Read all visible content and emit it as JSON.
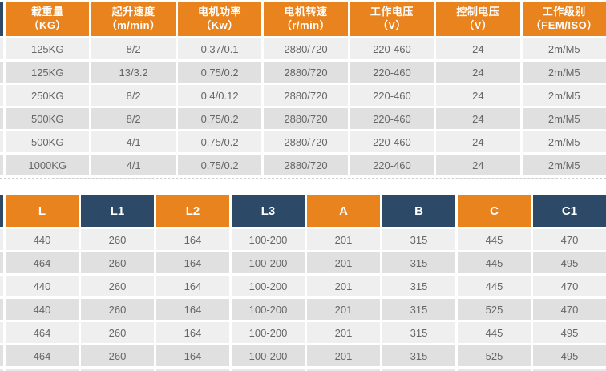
{
  "colors": {
    "header_orange": "#E9831E",
    "header_navy": "#2C4A68",
    "row_light": "#F0EFEF",
    "row_dark": "#E1E0E0",
    "cell_text": "#666666"
  },
  "spec_table": {
    "columns": [
      {
        "title": "载重量",
        "unit": "（KG）"
      },
      {
        "title": "起升速度",
        "unit": "（m/min）"
      },
      {
        "title": "电机功率",
        "unit": "（Kw）"
      },
      {
        "title": "电机转速",
        "unit": "（r/min）"
      },
      {
        "title": "工作电压",
        "unit": "（V）"
      },
      {
        "title": "控制电压",
        "unit": "（V）"
      },
      {
        "title": "工作级别",
        "unit": "（FEM/ISO）"
      }
    ],
    "rows": [
      [
        "125KG",
        "8/2",
        "0.37/0.1",
        "2880/720",
        "220-460",
        "24",
        "2m/M5"
      ],
      [
        "125KG",
        "13/3.2",
        "0.75/0.2",
        "2880/720",
        "220-460",
        "24",
        "2m/M5"
      ],
      [
        "250KG",
        "8/2",
        "0.4/0.12",
        "2880/720",
        "220-460",
        "24",
        "2m/M5"
      ],
      [
        "500KG",
        "8/2",
        "0.75/0.2",
        "2880/720",
        "220-460",
        "24",
        "2m/M5"
      ],
      [
        "500KG",
        "4/1",
        "0.75/0.2",
        "2880/720",
        "220-460",
        "24",
        "2m/M5"
      ],
      [
        "1000KG",
        "4/1",
        "0.75/0.2",
        "2880/720",
        "220-460",
        "24",
        "2m/M5"
      ]
    ]
  },
  "dimensions_table": {
    "columns": [
      "L",
      "L1",
      "L2",
      "L3",
      "A",
      "B",
      "C",
      "C1"
    ],
    "rows": [
      [
        "440",
        "260",
        "164",
        "100-200",
        "201",
        "315",
        "445",
        "470"
      ],
      [
        "464",
        "260",
        "164",
        "100-200",
        "201",
        "315",
        "445",
        "495"
      ],
      [
        "440",
        "260",
        "164",
        "100-200",
        "201",
        "315",
        "445",
        "470"
      ],
      [
        "440",
        "260",
        "164",
        "100-200",
        "201",
        "315",
        "525",
        "470"
      ],
      [
        "464",
        "260",
        "164",
        "100-200",
        "201",
        "315",
        "445",
        "495"
      ],
      [
        "464",
        "260",
        "164",
        "100-200",
        "201",
        "315",
        "525",
        "495"
      ]
    ]
  }
}
